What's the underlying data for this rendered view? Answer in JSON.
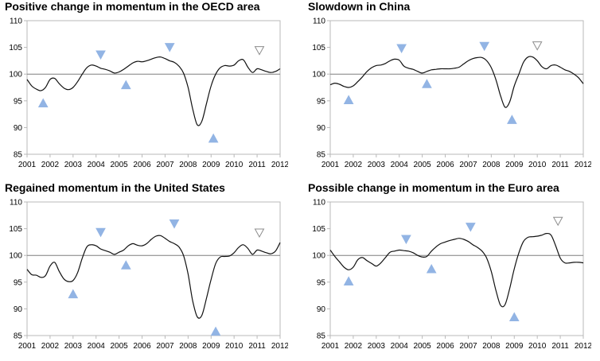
{
  "chart_data": [
    {
      "type": "line",
      "title": "Positive change in momentum in the OECD area",
      "x_ticks": [
        "2001",
        "2002",
        "2003",
        "2004",
        "2005",
        "2006",
        "2007",
        "2008",
        "2009",
        "2010",
        "2011",
        "2012"
      ],
      "y_ticks": [
        85,
        90,
        95,
        100,
        105,
        110
      ],
      "xlim": [
        2001,
        2012
      ],
      "ylim": [
        85,
        110
      ],
      "reference_line": 100,
      "grid": false,
      "series": [
        {
          "x": [
            2001.0,
            2001.2,
            2001.4,
            2001.6,
            2001.8,
            2002.0,
            2002.2,
            2002.4,
            2002.6,
            2002.8,
            2003.0,
            2003.2,
            2003.4,
            2003.6,
            2003.8,
            2004.0,
            2004.2,
            2004.4,
            2004.6,
            2004.8,
            2005.0,
            2005.2,
            2005.4,
            2005.6,
            2005.8,
            2006.0,
            2006.2,
            2006.4,
            2006.6,
            2006.8,
            2007.0,
            2007.2,
            2007.4,
            2007.6,
            2007.8,
            2008.0,
            2008.2,
            2008.4,
            2008.6,
            2008.8,
            2009.0,
            2009.2,
            2009.4,
            2009.6,
            2009.8,
            2010.0,
            2010.2,
            2010.4,
            2010.6,
            2010.8,
            2011.0,
            2011.2,
            2011.4,
            2011.6,
            2011.8,
            2012.0
          ],
          "values": [
            99,
            97.8,
            97.2,
            96.9,
            97.5,
            99,
            99.2,
            98.2,
            97.4,
            97.1,
            97.5,
            98.6,
            100.0,
            101.2,
            101.7,
            101.5,
            101.1,
            100.9,
            100.6,
            100.2,
            100.4,
            100.9,
            101.5,
            102.1,
            102.4,
            102.3,
            102.5,
            102.8,
            103.1,
            103.2,
            102.9,
            102.5,
            102.2,
            101.5,
            100.2,
            97.5,
            93.5,
            90.5,
            91.2,
            94.5,
            97.8,
            100.0,
            101.2,
            101.6,
            101.5,
            101.7,
            102.5,
            102.7,
            101.3,
            100.3,
            101.0,
            100.8,
            100.5,
            100.3,
            100.5,
            101.0
          ]
        }
      ],
      "markers": [
        {
          "x": 2001.7,
          "y": 94.6,
          "kind": "up"
        },
        {
          "x": 2004.2,
          "y": 103.6,
          "kind": "down"
        },
        {
          "x": 2005.3,
          "y": 98.0,
          "kind": "up"
        },
        {
          "x": 2007.2,
          "y": 105.0,
          "kind": "down"
        },
        {
          "x": 2009.1,
          "y": 88.0,
          "kind": "up"
        },
        {
          "x": 2011.1,
          "y": 104.4,
          "kind": "down-hollow"
        }
      ]
    },
    {
      "type": "line",
      "title": "Slowdown in China",
      "x_ticks": [
        "2001",
        "2002",
        "2003",
        "2004",
        "2005",
        "2006",
        "2007",
        "2008",
        "2009",
        "2010",
        "2011",
        "2012"
      ],
      "y_ticks": [
        85,
        90,
        95,
        100,
        105,
        110
      ],
      "xlim": [
        2001,
        2012
      ],
      "ylim": [
        85,
        110
      ],
      "reference_line": 100,
      "grid": false,
      "series": [
        {
          "x": [
            2001.0,
            2001.2,
            2001.4,
            2001.6,
            2001.8,
            2002.0,
            2002.2,
            2002.4,
            2002.6,
            2002.8,
            2003.0,
            2003.2,
            2003.4,
            2003.6,
            2003.8,
            2004.0,
            2004.2,
            2004.4,
            2004.6,
            2004.8,
            2005.0,
            2005.2,
            2005.4,
            2005.6,
            2005.8,
            2006.0,
            2006.2,
            2006.4,
            2006.6,
            2006.8,
            2007.0,
            2007.2,
            2007.4,
            2007.6,
            2007.8,
            2008.0,
            2008.2,
            2008.4,
            2008.6,
            2008.8,
            2009.0,
            2009.2,
            2009.4,
            2009.6,
            2009.8,
            2010.0,
            2010.2,
            2010.4,
            2010.6,
            2010.8,
            2011.0,
            2011.2,
            2011.4,
            2011.6,
            2011.8,
            2012.0
          ],
          "values": [
            98,
            98.3,
            98.1,
            97.7,
            97.5,
            97.8,
            98.6,
            99.5,
            100.5,
            101.2,
            101.6,
            101.7,
            102.0,
            102.5,
            102.8,
            102.6,
            101.5,
            101.1,
            100.9,
            100.5,
            100.2,
            100.5,
            100.8,
            100.9,
            101.0,
            101.0,
            101.0,
            101.1,
            101.3,
            101.9,
            102.5,
            102.9,
            103.1,
            103.1,
            102.5,
            101.2,
            99.0,
            96.0,
            93.8,
            94.8,
            97.8,
            100.0,
            102.2,
            103.2,
            103.2,
            102.5,
            101.4,
            101.0,
            101.6,
            101.7,
            101.3,
            100.8,
            100.5,
            100.0,
            99.3,
            98.2
          ]
        }
      ],
      "markers": [
        {
          "x": 2001.8,
          "y": 95.2,
          "kind": "up"
        },
        {
          "x": 2004.1,
          "y": 104.8,
          "kind": "down"
        },
        {
          "x": 2005.2,
          "y": 98.2,
          "kind": "up"
        },
        {
          "x": 2007.7,
          "y": 105.2,
          "kind": "down"
        },
        {
          "x": 2008.9,
          "y": 91.5,
          "kind": "up"
        },
        {
          "x": 2010.0,
          "y": 105.3,
          "kind": "down-hollow"
        }
      ]
    },
    {
      "type": "line",
      "title": "Regained momentum in the United States",
      "x_ticks": [
        "2001",
        "2002",
        "2003",
        "2004",
        "2005",
        "2006",
        "2007",
        "2008",
        "2009",
        "2010",
        "2011",
        "2012"
      ],
      "y_ticks": [
        85,
        90,
        95,
        100,
        105,
        110
      ],
      "xlim": [
        2001,
        2012
      ],
      "ylim": [
        85,
        110
      ],
      "reference_line": 100,
      "grid": false,
      "series": [
        {
          "x": [
            2001.0,
            2001.2,
            2001.4,
            2001.6,
            2001.8,
            2002.0,
            2002.2,
            2002.4,
            2002.6,
            2002.8,
            2003.0,
            2003.2,
            2003.4,
            2003.6,
            2003.8,
            2004.0,
            2004.2,
            2004.4,
            2004.6,
            2004.8,
            2005.0,
            2005.2,
            2005.4,
            2005.6,
            2005.8,
            2006.0,
            2006.2,
            2006.4,
            2006.6,
            2006.8,
            2007.0,
            2007.2,
            2007.4,
            2007.6,
            2007.8,
            2008.0,
            2008.2,
            2008.4,
            2008.6,
            2008.8,
            2009.0,
            2009.2,
            2009.4,
            2009.6,
            2009.8,
            2010.0,
            2010.2,
            2010.4,
            2010.6,
            2010.8,
            2011.0,
            2011.2,
            2011.4,
            2011.6,
            2011.8,
            2012.0
          ],
          "values": [
            97.4,
            96.4,
            96.3,
            95.9,
            96.2,
            98.0,
            98.7,
            97.0,
            95.6,
            95.1,
            95.3,
            96.8,
            99.5,
            101.6,
            102.0,
            101.8,
            101.2,
            100.9,
            100.6,
            100.2,
            100.6,
            101.0,
            101.8,
            102.2,
            101.9,
            101.8,
            102.2,
            103.0,
            103.6,
            103.7,
            103.2,
            102.6,
            102.2,
            101.6,
            100.0,
            96.5,
            91.5,
            88.5,
            88.8,
            92.0,
            95.5,
            98.5,
            99.7,
            99.8,
            99.9,
            100.5,
            101.5,
            102.0,
            101.3,
            100.2,
            101.0,
            100.8,
            100.5,
            100.3,
            100.8,
            102.4
          ]
        }
      ],
      "markers": [
        {
          "x": 2003.0,
          "y": 92.8,
          "kind": "up"
        },
        {
          "x": 2004.2,
          "y": 104.3,
          "kind": "down"
        },
        {
          "x": 2005.3,
          "y": 98.2,
          "kind": "up"
        },
        {
          "x": 2007.4,
          "y": 105.9,
          "kind": "down"
        },
        {
          "x": 2009.2,
          "y": 85.8,
          "kind": "up"
        },
        {
          "x": 2011.1,
          "y": 104.2,
          "kind": "down-hollow"
        }
      ]
    },
    {
      "type": "line",
      "title": "Possible change in momentum in the Euro area",
      "x_ticks": [
        "2001",
        "2002",
        "2003",
        "2004",
        "2005",
        "2006",
        "2007",
        "2008",
        "2009",
        "2010",
        "2011",
        "2012"
      ],
      "y_ticks": [
        85,
        90,
        95,
        100,
        105,
        110
      ],
      "xlim": [
        2001,
        2012
      ],
      "ylim": [
        85,
        110
      ],
      "reference_line": 100,
      "grid": false,
      "series": [
        {
          "x": [
            2001.0,
            2001.2,
            2001.4,
            2001.6,
            2001.8,
            2002.0,
            2002.2,
            2002.4,
            2002.6,
            2002.8,
            2003.0,
            2003.2,
            2003.4,
            2003.6,
            2003.8,
            2004.0,
            2004.2,
            2004.4,
            2004.6,
            2004.8,
            2005.0,
            2005.2,
            2005.4,
            2005.6,
            2005.8,
            2006.0,
            2006.2,
            2006.4,
            2006.6,
            2006.8,
            2007.0,
            2007.2,
            2007.4,
            2007.6,
            2007.8,
            2008.0,
            2008.2,
            2008.4,
            2008.6,
            2008.8,
            2009.0,
            2009.2,
            2009.4,
            2009.6,
            2009.8,
            2010.0,
            2010.2,
            2010.4,
            2010.6,
            2010.8,
            2011.0,
            2011.2,
            2011.4,
            2011.6,
            2011.8,
            2012.0
          ],
          "values": [
            101.0,
            99.8,
            98.8,
            97.8,
            97.3,
            97.8,
            99.2,
            99.6,
            99.0,
            98.5,
            98.0,
            98.6,
            99.6,
            100.6,
            100.8,
            101.0,
            100.9,
            100.8,
            100.5,
            100.0,
            99.7,
            99.8,
            100.8,
            101.6,
            102.2,
            102.5,
            102.8,
            103.0,
            103.2,
            103.0,
            102.6,
            102.0,
            101.5,
            100.8,
            99.5,
            97.0,
            93.5,
            90.7,
            90.8,
            93.8,
            97.5,
            100.5,
            102.6,
            103.4,
            103.5,
            103.6,
            103.8,
            104.1,
            103.8,
            101.8,
            99.5,
            98.6,
            98.6,
            98.7,
            98.7,
            98.6
          ]
        }
      ],
      "markers": [
        {
          "x": 2001.8,
          "y": 95.2,
          "kind": "up"
        },
        {
          "x": 2004.3,
          "y": 103.0,
          "kind": "down"
        },
        {
          "x": 2005.4,
          "y": 97.5,
          "kind": "up"
        },
        {
          "x": 2007.1,
          "y": 105.3,
          "kind": "down"
        },
        {
          "x": 2009.0,
          "y": 88.5,
          "kind": "up"
        },
        {
          "x": 2010.9,
          "y": 106.4,
          "kind": "down-hollow"
        }
      ]
    }
  ],
  "colors": {
    "line": "#111111",
    "reference": "#7f7f7f",
    "marker_fill": "#92b4e4",
    "marker_hollow_stroke": "#8c8c8c",
    "frame": "#b9b9b9"
  }
}
